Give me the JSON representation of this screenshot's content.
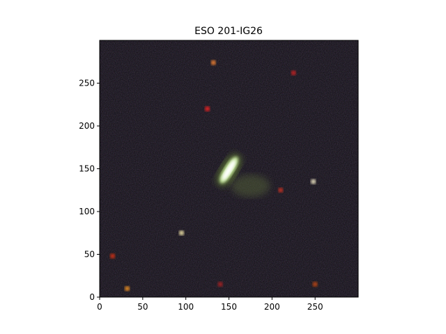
{
  "figure": {
    "title": "ESO 201-IG26"
  },
  "chart_data": {
    "type": "image",
    "title": "ESO 201-IG26",
    "xlabel": "",
    "ylabel": "",
    "xlim": [
      0,
      300
    ],
    "ylim": [
      0,
      300
    ],
    "xticks": [
      0,
      50,
      100,
      150,
      200,
      250
    ],
    "yticks": [
      0,
      50,
      100,
      150,
      200,
      250
    ],
    "grid": false,
    "legend": "none",
    "background_color": "#0d0b10",
    "sources": [
      {
        "name": "central-galaxy-core",
        "x": 150,
        "y": 155,
        "color": "#f4fff0",
        "kind": "elongated-galaxy"
      },
      {
        "name": "galaxy-halo-lower",
        "x": 175,
        "y": 130,
        "color": "#5a6a3a",
        "kind": "diffuse"
      },
      {
        "name": "star-right",
        "x": 248,
        "y": 135,
        "color": "#fff6d0"
      },
      {
        "name": "star-left",
        "x": 95,
        "y": 75,
        "color": "#fff2b0"
      },
      {
        "name": "star-bottom-left",
        "x": 32,
        "y": 10,
        "color": "#ff9a20"
      },
      {
        "name": "star-bottom-right",
        "x": 250,
        "y": 15,
        "color": "#c84a10"
      },
      {
        "name": "red-dot-1",
        "x": 125,
        "y": 220,
        "color": "#ff2020"
      },
      {
        "name": "red-dot-2",
        "x": 225,
        "y": 262,
        "color": "#d02020"
      },
      {
        "name": "red-dot-3",
        "x": 132,
        "y": 274,
        "color": "#ff8830"
      },
      {
        "name": "red-dot-4",
        "x": 15,
        "y": 48,
        "color": "#e03010"
      },
      {
        "name": "red-dot-5",
        "x": 210,
        "y": 125,
        "color": "#d03020"
      },
      {
        "name": "red-dot-6",
        "x": 140,
        "y": 15,
        "color": "#b02020"
      }
    ]
  }
}
